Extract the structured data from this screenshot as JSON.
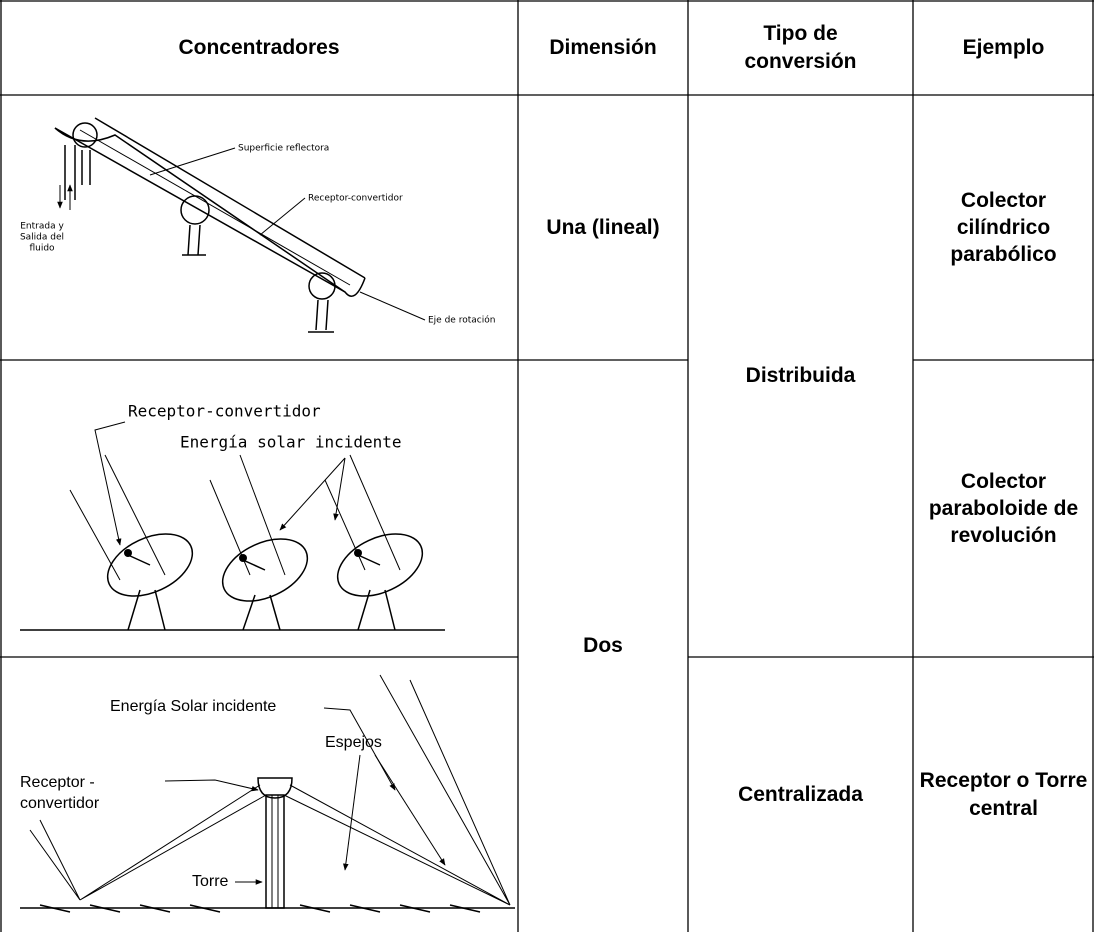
{
  "table": {
    "header": [
      "Concentradores",
      "Dimensión",
      "Tipo de conversión",
      "Ejemplo"
    ],
    "dimension": [
      "Una (lineal)",
      "Dos"
    ],
    "conversion": [
      "Distribuida",
      "Centralizada"
    ],
    "example": [
      "Colector cilíndrico parabólico",
      "Colector paraboloide de revolución",
      "Receptor o Torre central"
    ]
  },
  "figures": [
    {
      "labels": [
        "Superficie reflectora",
        "Receptor-convertidor",
        "Eje de rotación"
      ],
      "inlet": [
        "Entrada y",
        "Salida del",
        "fluido"
      ]
    },
    {
      "labels": [
        "Receptor-convertidor",
        "Energía solar incidente"
      ]
    },
    {
      "labels": [
        "Energía Solar incidente",
        "Espejos",
        "Torre"
      ],
      "receiver": [
        "Receptor -",
        "convertidor"
      ]
    }
  ]
}
